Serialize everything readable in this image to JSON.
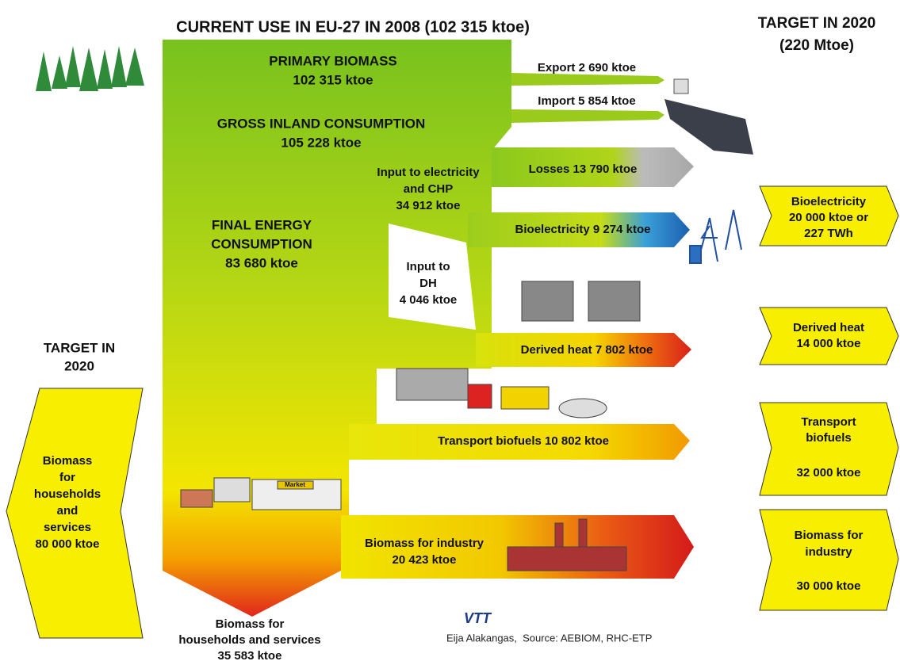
{
  "header": {
    "title": "CURRENT USE IN EU-27 IN 2008 (102 315 ktoe)",
    "target": [
      "TARGET IN 2020",
      "(220 Mtoe)"
    ]
  },
  "flows": {
    "primary": [
      "PRIMARY BIOMASS",
      "102 315 ktoe"
    ],
    "export": "Export 2 690 ktoe",
    "import": "Import 5 854 ktoe",
    "gross": [
      "GROSS INLAND CONSUMPTION",
      "105 228 ktoe"
    ],
    "electricity_input": [
      "Input to electricity",
      "and CHP",
      "34 912 ktoe"
    ],
    "losses": "Losses 13 790 ktoe",
    "bioelectricity": "Bioelectricity 9 274 ktoe",
    "final": [
      "FINAL ENERGY",
      "CONSUMPTION",
      "83 680 ktoe"
    ],
    "dh_input": [
      "Input to",
      "DH",
      "4 046 ktoe"
    ],
    "derived_heat": "Derived heat 7 802 ktoe",
    "transport": "Transport biofuels 10 802 ktoe",
    "industry": [
      "Biomass for industry",
      "20 423 ktoe"
    ],
    "households": [
      "Biomass for",
      "households and services",
      "35 583 ktoe"
    ]
  },
  "targets": {
    "title": [
      "TARGET IN",
      "2020"
    ],
    "households": [
      "Biomass",
      "for",
      "households",
      "and",
      "services",
      "80 000 ktoe"
    ],
    "bioelectricity": [
      "Bioelectricity",
      "20 000 ktoe or",
      "227 TWh"
    ],
    "derived_heat": [
      "Derived heat",
      "14 000 ktoe"
    ],
    "transport": [
      "Transport",
      "biofuels",
      "32 000 ktoe"
    ],
    "industry": [
      "Biomass for",
      "industry",
      "30 000 ktoe"
    ]
  },
  "icons": {
    "market": "Market"
  },
  "credit": {
    "logo": "VTT",
    "source": "Eija Alakangas,  Source: AEBIOM, RHC-ETP"
  }
}
